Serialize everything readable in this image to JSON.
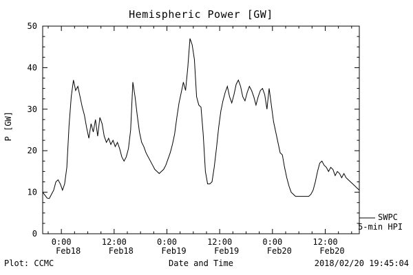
{
  "title": "Hemispheric Power [GW]",
  "axes": {
    "x_label": "Date and Time",
    "y_label": "P [GW]"
  },
  "footer": {
    "left": "Plot: CCMC",
    "right": "2018/02/20 19:45:04"
  },
  "legend": {
    "line1": "SWPC",
    "line2": "5-min HPI"
  },
  "chart_data": {
    "type": "line",
    "title": "Hemispheric Power [GW]",
    "xlabel": "Date and Time",
    "ylabel": "P [GW]",
    "ylim": [
      0,
      50
    ],
    "xlim_hours": [
      -4.25,
      67.75
    ],
    "x_unit": "hours relative to Feb18 00:00",
    "grid": false,
    "background": "#ffffff",
    "line_color": "#000000",
    "legend_position": "outside-right-bottom",
    "y_ticks": [
      0,
      10,
      20,
      30,
      40,
      50
    ],
    "y_minor_step": 2.5,
    "x_minor_step_hours": 3,
    "x_ticks": [
      {
        "hours": 0,
        "time": "0:00",
        "date": "Feb18"
      },
      {
        "hours": 12,
        "time": "12:00",
        "date": "Feb18"
      },
      {
        "hours": 24,
        "time": "0:00",
        "date": "Feb19"
      },
      {
        "hours": 36,
        "time": "12:00",
        "date": "Feb19"
      },
      {
        "hours": 48,
        "time": "0:00",
        "date": "Feb20"
      },
      {
        "hours": 60,
        "time": "12:00",
        "date": "Feb20"
      }
    ],
    "series": [
      {
        "name": "SWPC 5-min HPI",
        "points": [
          [
            -4.25,
            10
          ],
          [
            -3.75,
            9.3
          ],
          [
            -3.25,
            8.6
          ],
          [
            -2.75,
            8.5
          ],
          [
            -2.25,
            9.5
          ],
          [
            -1.75,
            10.5
          ],
          [
            -1.25,
            12.5
          ],
          [
            -0.75,
            13
          ],
          [
            -0.25,
            12
          ],
          [
            0.25,
            10.5
          ],
          [
            0.75,
            12
          ],
          [
            1.25,
            16
          ],
          [
            1.75,
            26
          ],
          [
            2.25,
            33
          ],
          [
            2.75,
            37
          ],
          [
            3.25,
            34.5
          ],
          [
            3.75,
            35.5
          ],
          [
            4.25,
            33
          ],
          [
            4.75,
            30.5
          ],
          [
            5.25,
            28.5
          ],
          [
            5.75,
            25.5
          ],
          [
            6.25,
            23
          ],
          [
            6.75,
            26.5
          ],
          [
            7.25,
            24.5
          ],
          [
            7.75,
            27.5
          ],
          [
            8.25,
            23.5
          ],
          [
            8.75,
            28
          ],
          [
            9.25,
            26.5
          ],
          [
            9.75,
            23.5
          ],
          [
            10.25,
            22
          ],
          [
            10.75,
            23
          ],
          [
            11.25,
            21.5
          ],
          [
            11.75,
            22.5
          ],
          [
            12.25,
            21
          ],
          [
            12.75,
            22
          ],
          [
            13.25,
            20.5
          ],
          [
            13.75,
            18.5
          ],
          [
            14.25,
            17.5
          ],
          [
            14.75,
            18.5
          ],
          [
            15.25,
            20.5
          ],
          [
            15.75,
            25
          ],
          [
            16.25,
            36.5
          ],
          [
            16.75,
            33
          ],
          [
            17.25,
            28.5
          ],
          [
            17.75,
            24.5
          ],
          [
            18.25,
            22
          ],
          [
            18.75,
            21
          ],
          [
            19.25,
            19.5
          ],
          [
            19.75,
            18.5
          ],
          [
            20.25,
            17.5
          ],
          [
            20.75,
            16.5
          ],
          [
            21.25,
            15.5
          ],
          [
            21.75,
            15
          ],
          [
            22.25,
            14.5
          ],
          [
            22.75,
            15
          ],
          [
            23.25,
            15.5
          ],
          [
            23.75,
            16.5
          ],
          [
            24.25,
            18
          ],
          [
            24.75,
            19.5
          ],
          [
            25.25,
            21.5
          ],
          [
            25.75,
            24
          ],
          [
            26.25,
            28
          ],
          [
            26.75,
            31.5
          ],
          [
            27.25,
            34
          ],
          [
            27.75,
            36.5
          ],
          [
            28.25,
            34.5
          ],
          [
            28.75,
            40
          ],
          [
            29.25,
            47
          ],
          [
            29.75,
            45.5
          ],
          [
            30.25,
            42
          ],
          [
            30.75,
            33
          ],
          [
            31.25,
            31
          ],
          [
            31.75,
            30.5
          ],
          [
            32.25,
            24
          ],
          [
            32.75,
            15
          ],
          [
            33.25,
            12
          ],
          [
            33.75,
            12
          ],
          [
            34.25,
            12.5
          ],
          [
            34.75,
            16
          ],
          [
            35.25,
            20.5
          ],
          [
            35.75,
            25.5
          ],
          [
            36.25,
            29.5
          ],
          [
            36.75,
            32
          ],
          [
            37.25,
            34
          ],
          [
            37.75,
            35.5
          ],
          [
            38.25,
            33
          ],
          [
            38.75,
            31.5
          ],
          [
            39.25,
            33.5
          ],
          [
            39.75,
            36
          ],
          [
            40.25,
            37
          ],
          [
            40.75,
            35.5
          ],
          [
            41.25,
            33
          ],
          [
            41.75,
            32
          ],
          [
            42.25,
            34
          ],
          [
            42.75,
            35.5
          ],
          [
            43.25,
            34.5
          ],
          [
            43.75,
            33
          ],
          [
            44.25,
            31
          ],
          [
            44.75,
            33
          ],
          [
            45.25,
            34.5
          ],
          [
            45.75,
            35
          ],
          [
            46.25,
            33.5
          ],
          [
            46.75,
            30
          ],
          [
            47.25,
            35
          ],
          [
            47.75,
            31
          ],
          [
            48.25,
            27
          ],
          [
            48.75,
            24.5
          ],
          [
            49.25,
            22
          ],
          [
            49.75,
            19.5
          ],
          [
            50.25,
            19
          ],
          [
            50.75,
            16
          ],
          [
            51.25,
            13.5
          ],
          [
            51.75,
            11.5
          ],
          [
            52.25,
            10
          ],
          [
            52.75,
            9.5
          ],
          [
            53.25,
            9
          ],
          [
            53.75,
            9
          ],
          [
            54.25,
            9
          ],
          [
            54.75,
            9
          ],
          [
            55.25,
            9
          ],
          [
            55.75,
            9
          ],
          [
            56.25,
            9
          ],
          [
            56.75,
            9.5
          ],
          [
            57.25,
            10.5
          ],
          [
            57.75,
            12.5
          ],
          [
            58.25,
            15
          ],
          [
            58.75,
            17
          ],
          [
            59.25,
            17.5
          ],
          [
            59.75,
            16.5
          ],
          [
            60.25,
            16
          ],
          [
            60.75,
            15
          ],
          [
            61.25,
            16
          ],
          [
            61.75,
            15.5
          ],
          [
            62.25,
            14
          ],
          [
            62.75,
            15
          ],
          [
            63.25,
            14.5
          ],
          [
            63.75,
            13.5
          ],
          [
            64.25,
            14.5
          ],
          [
            64.75,
            13.5
          ],
          [
            65.25,
            13
          ],
          [
            65.75,
            12.5
          ],
          [
            66.25,
            12
          ],
          [
            66.75,
            11.5
          ],
          [
            67.25,
            11
          ],
          [
            67.75,
            10.5
          ]
        ]
      }
    ]
  }
}
